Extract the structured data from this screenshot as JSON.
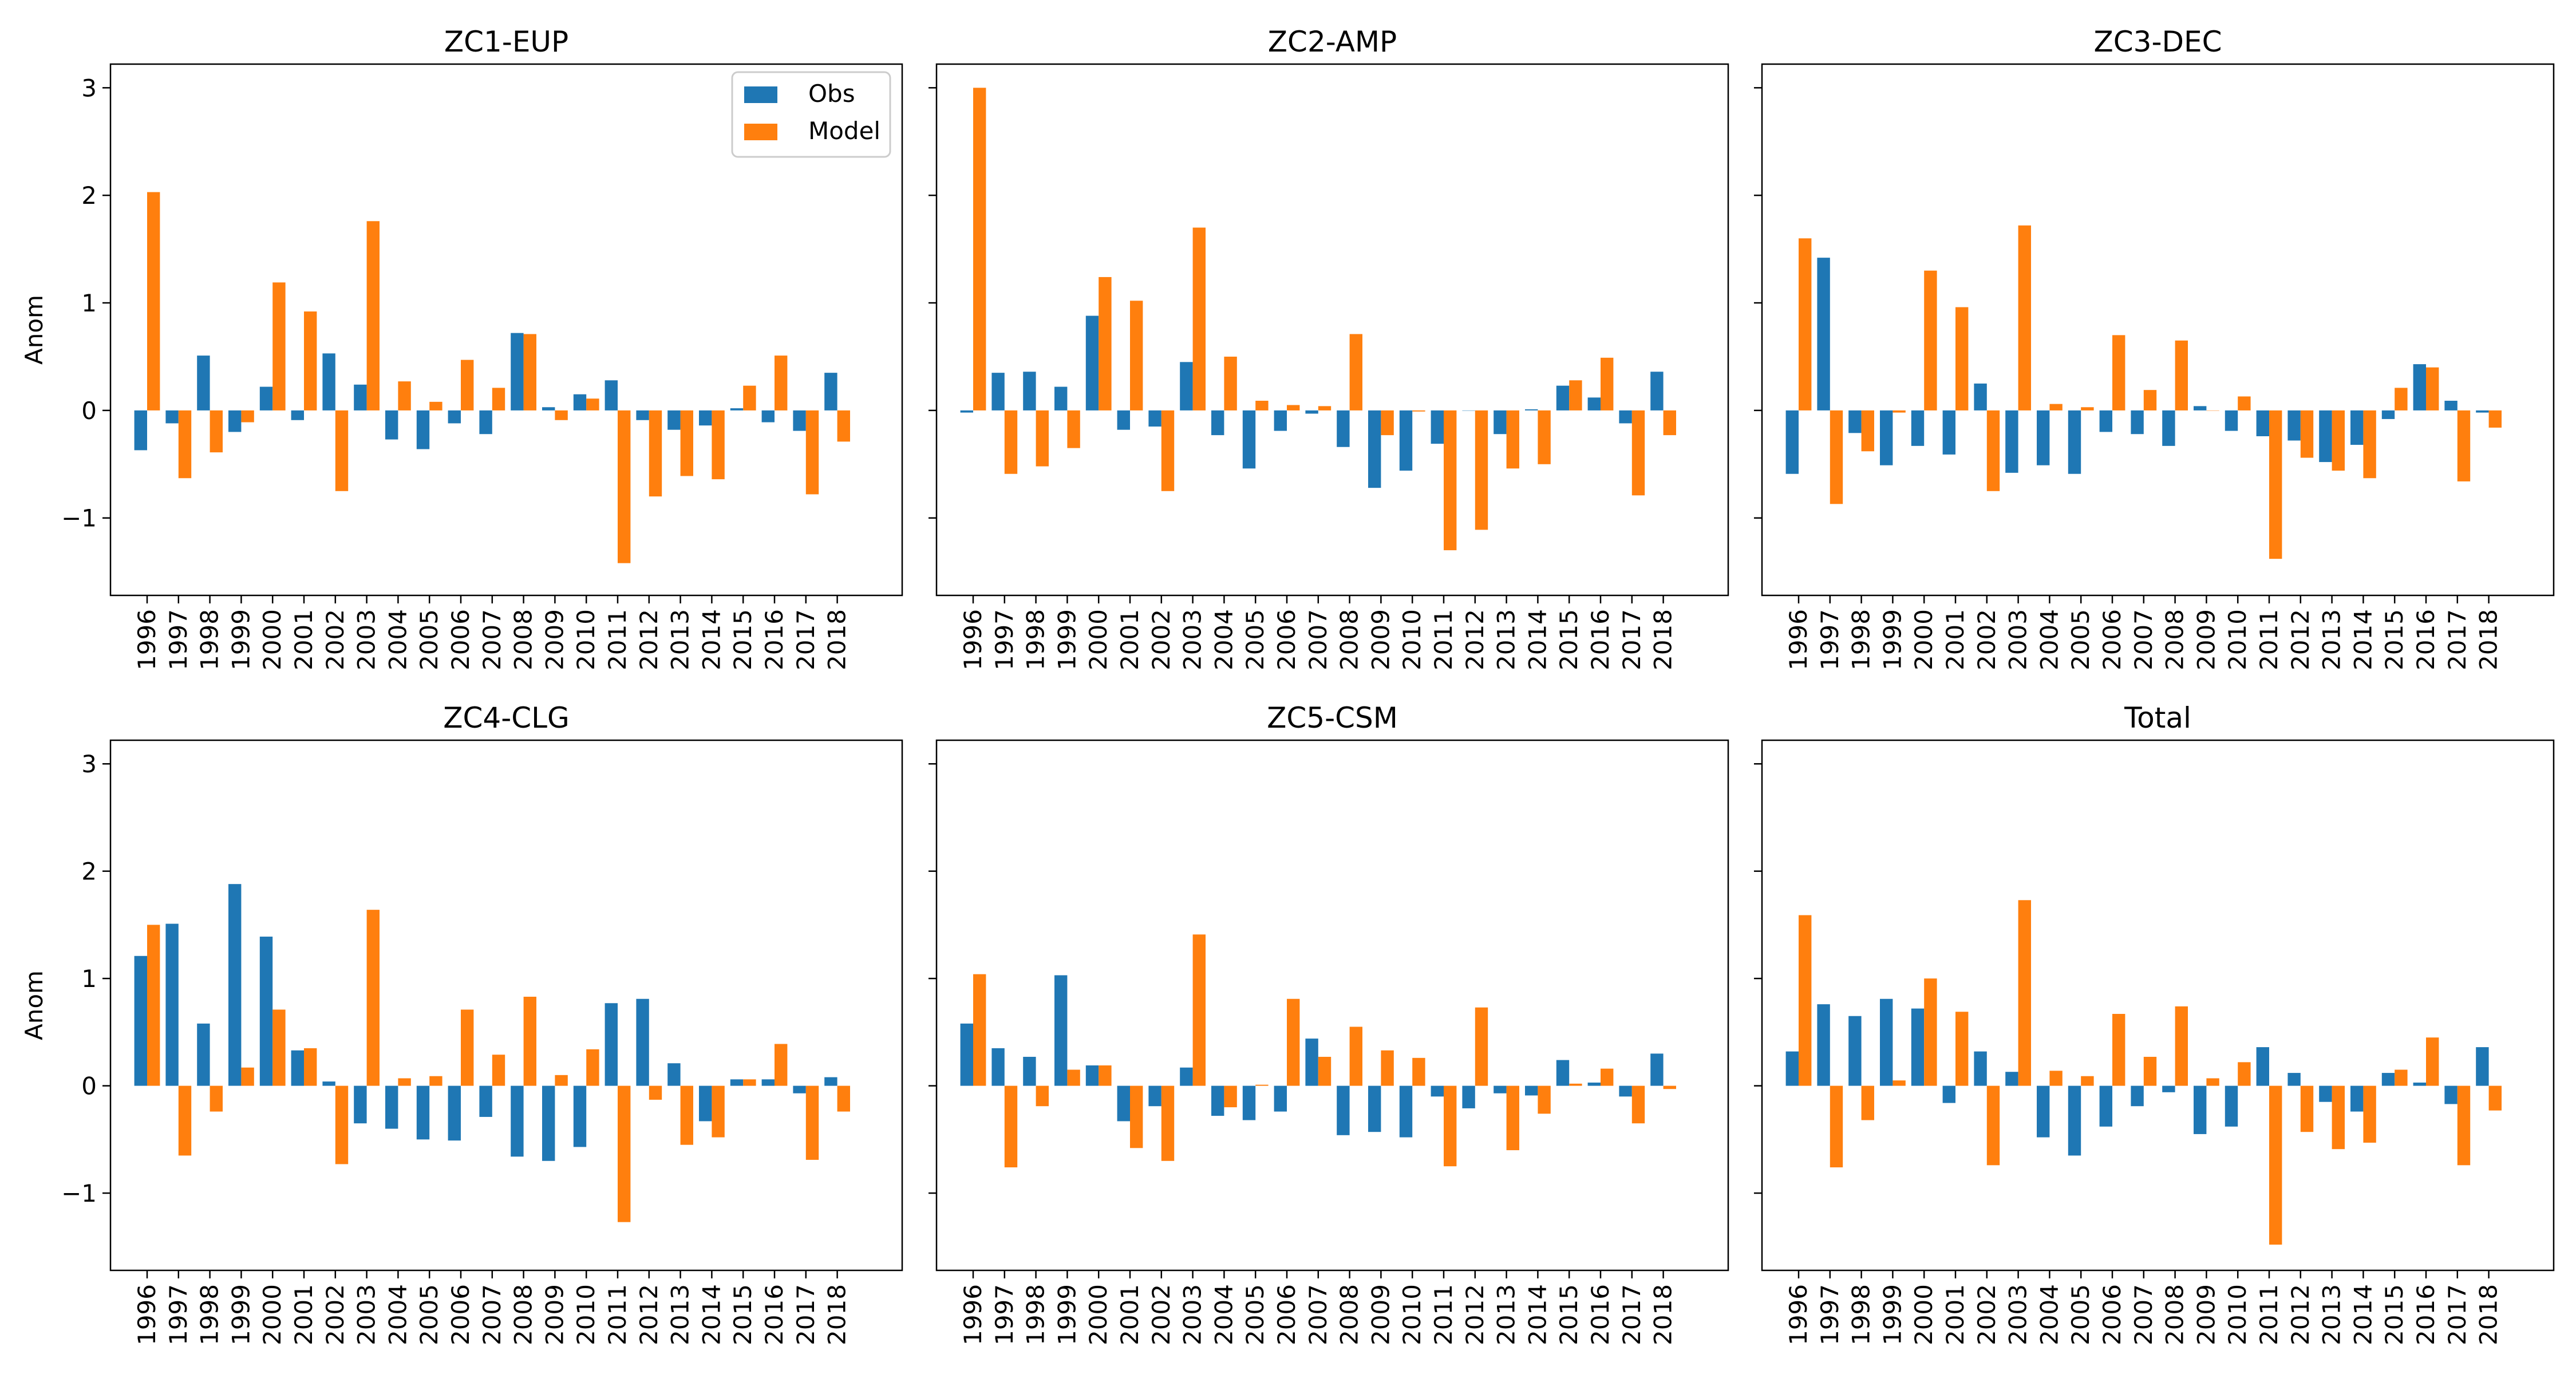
{
  "figure": {
    "ylabel": "Anom"
  },
  "legend": {
    "placement": "upper-right of first panel",
    "entries": [
      {
        "label": "Obs",
        "color": "#1f77b4"
      },
      {
        "label": "Model",
        "color": "#ff7f0e"
      }
    ]
  },
  "chart_data": [
    {
      "type": "bar",
      "title": "ZC1-EUP",
      "ylabel": "Anom",
      "ylim": [
        -1.72,
        3.22
      ],
      "yticks": [
        -1,
        0,
        1,
        2,
        3
      ],
      "categories": [
        "1996",
        "1997",
        "1998",
        "1999",
        "2000",
        "2001",
        "2002",
        "2003",
        "2004",
        "2005",
        "2006",
        "2007",
        "2008",
        "2009",
        "2010",
        "2011",
        "2012",
        "2013",
        "2014",
        "2015",
        "2016",
        "2017",
        "2018"
      ],
      "series": [
        {
          "name": "Obs",
          "color": "#1f77b4",
          "values": [
            -0.37,
            -0.12,
            0.51,
            -0.2,
            0.22,
            -0.09,
            0.53,
            0.24,
            -0.27,
            -0.36,
            -0.12,
            -0.22,
            0.72,
            0.03,
            0.15,
            0.28,
            -0.09,
            -0.18,
            -0.14,
            0.02,
            -0.11,
            -0.19,
            0.35
          ]
        },
        {
          "name": "Model",
          "color": "#ff7f0e",
          "values": [
            2.03,
            -0.63,
            -0.39,
            -0.11,
            1.19,
            0.92,
            -0.75,
            1.76,
            0.27,
            0.08,
            0.47,
            0.21,
            0.71,
            -0.09,
            0.11,
            -1.42,
            -0.8,
            -0.61,
            -0.64,
            0.23,
            0.51,
            -0.78,
            -0.29
          ]
        }
      ]
    },
    {
      "type": "bar",
      "title": "ZC2-AMP",
      "ylim": [
        -1.72,
        3.22
      ],
      "yticks": [
        -1,
        0,
        1,
        2,
        3
      ],
      "categories": [
        "1996",
        "1997",
        "1998",
        "1999",
        "2000",
        "2001",
        "2002",
        "2003",
        "2004",
        "2005",
        "2006",
        "2007",
        "2008",
        "2009",
        "2010",
        "2011",
        "2012",
        "2013",
        "2014",
        "2015",
        "2016",
        "2017",
        "2018"
      ],
      "series": [
        {
          "name": "Obs",
          "color": "#1f77b4",
          "values": [
            -0.02,
            0.35,
            0.36,
            0.22,
            0.88,
            -0.18,
            -0.15,
            0.45,
            -0.23,
            -0.54,
            -0.19,
            -0.03,
            -0.34,
            -0.72,
            -0.56,
            -0.31,
            0.0,
            -0.22,
            0.01,
            0.23,
            0.12,
            -0.12,
            0.36
          ]
        },
        {
          "name": "Model",
          "color": "#ff7f0e",
          "values": [
            3.0,
            -0.59,
            -0.52,
            -0.35,
            1.24,
            1.02,
            -0.75,
            1.7,
            0.5,
            0.09,
            0.05,
            0.04,
            0.71,
            -0.23,
            -0.01,
            -1.3,
            -1.11,
            -0.54,
            -0.5,
            0.28,
            0.49,
            -0.79,
            -0.23
          ]
        }
      ]
    },
    {
      "type": "bar",
      "title": "ZC3-DEC",
      "ylim": [
        -1.72,
        3.22
      ],
      "yticks": [
        -1,
        0,
        1,
        2,
        3
      ],
      "categories": [
        "1996",
        "1997",
        "1998",
        "1999",
        "2000",
        "2001",
        "2002",
        "2003",
        "2004",
        "2005",
        "2006",
        "2007",
        "2008",
        "2009",
        "2010",
        "2011",
        "2012",
        "2013",
        "2014",
        "2015",
        "2016",
        "2017",
        "2018"
      ],
      "series": [
        {
          "name": "Obs",
          "color": "#1f77b4",
          "values": [
            -0.59,
            1.42,
            -0.21,
            -0.51,
            -0.33,
            -0.41,
            0.25,
            -0.58,
            -0.51,
            -0.59,
            -0.2,
            -0.22,
            -0.33,
            0.04,
            -0.19,
            -0.24,
            -0.28,
            -0.48,
            -0.32,
            -0.08,
            0.43,
            0.09,
            -0.02
          ]
        },
        {
          "name": "Model",
          "color": "#ff7f0e",
          "values": [
            1.6,
            -0.87,
            -0.38,
            -0.02,
            1.3,
            0.96,
            -0.75,
            1.72,
            0.06,
            0.03,
            0.7,
            0.19,
            0.65,
            0.0,
            0.13,
            -1.38,
            -0.44,
            -0.56,
            -0.63,
            0.21,
            0.4,
            -0.66,
            -0.16
          ]
        }
      ]
    },
    {
      "type": "bar",
      "title": "ZC4-CLG",
      "ylabel": "Anom",
      "ylim": [
        -1.72,
        3.22
      ],
      "yticks": [
        -1,
        0,
        1,
        2,
        3
      ],
      "categories": [
        "1996",
        "1997",
        "1998",
        "1999",
        "2000",
        "2001",
        "2002",
        "2003",
        "2004",
        "2005",
        "2006",
        "2007",
        "2008",
        "2009",
        "2010",
        "2011",
        "2012",
        "2013",
        "2014",
        "2015",
        "2016",
        "2017",
        "2018"
      ],
      "series": [
        {
          "name": "Obs",
          "color": "#1f77b4",
          "values": [
            1.21,
            1.51,
            0.58,
            1.88,
            1.39,
            0.33,
            0.04,
            -0.35,
            -0.4,
            -0.5,
            -0.51,
            -0.29,
            -0.66,
            -0.7,
            -0.57,
            0.77,
            0.81,
            0.21,
            -0.33,
            0.06,
            0.06,
            -0.07,
            0.08
          ]
        },
        {
          "name": "Model",
          "color": "#ff7f0e",
          "values": [
            1.5,
            -0.65,
            -0.24,
            0.17,
            0.71,
            0.35,
            -0.73,
            1.64,
            0.07,
            0.09,
            0.71,
            0.29,
            0.83,
            0.1,
            0.34,
            -1.27,
            -0.13,
            -0.55,
            -0.48,
            0.06,
            0.39,
            -0.69,
            -0.24
          ]
        }
      ]
    },
    {
      "type": "bar",
      "title": "ZC5-CSM",
      "ylim": [
        -1.72,
        3.22
      ],
      "yticks": [
        -1,
        0,
        1,
        2,
        3
      ],
      "categories": [
        "1996",
        "1997",
        "1998",
        "1999",
        "2000",
        "2001",
        "2002",
        "2003",
        "2004",
        "2005",
        "2006",
        "2007",
        "2008",
        "2009",
        "2010",
        "2011",
        "2012",
        "2013",
        "2014",
        "2015",
        "2016",
        "2017",
        "2018"
      ],
      "series": [
        {
          "name": "Obs",
          "color": "#1f77b4",
          "values": [
            0.58,
            0.35,
            0.27,
            1.03,
            0.19,
            -0.33,
            -0.19,
            0.17,
            -0.28,
            -0.32,
            -0.24,
            0.44,
            -0.46,
            -0.43,
            -0.48,
            -0.1,
            -0.21,
            -0.07,
            -0.09,
            0.24,
            0.03,
            -0.1,
            0.3
          ]
        },
        {
          "name": "Model",
          "color": "#ff7f0e",
          "values": [
            1.04,
            -0.76,
            -0.19,
            0.15,
            0.19,
            -0.58,
            -0.7,
            1.41,
            -0.2,
            0.01,
            0.81,
            0.27,
            0.55,
            0.33,
            0.26,
            -0.75,
            0.73,
            -0.6,
            -0.26,
            0.02,
            0.16,
            -0.35,
            -0.03
          ]
        }
      ]
    },
    {
      "type": "bar",
      "title": "Total",
      "ylim": [
        -1.72,
        3.22
      ],
      "yticks": [
        -1,
        0,
        1,
        2,
        3
      ],
      "categories": [
        "1996",
        "1997",
        "1998",
        "1999",
        "2000",
        "2001",
        "2002",
        "2003",
        "2004",
        "2005",
        "2006",
        "2007",
        "2008",
        "2009",
        "2010",
        "2011",
        "2012",
        "2013",
        "2014",
        "2015",
        "2016",
        "2017",
        "2018"
      ],
      "series": [
        {
          "name": "Obs",
          "color": "#1f77b4",
          "values": [
            0.32,
            0.76,
            0.65,
            0.81,
            0.72,
            -0.16,
            0.32,
            0.13,
            -0.48,
            -0.65,
            -0.38,
            -0.19,
            -0.06,
            -0.45,
            -0.38,
            0.36,
            0.12,
            -0.15,
            -0.24,
            0.12,
            0.03,
            -0.17,
            0.36
          ]
        },
        {
          "name": "Model",
          "color": "#ff7f0e",
          "values": [
            1.59,
            -0.76,
            -0.32,
            0.05,
            1.0,
            0.69,
            -0.74,
            1.73,
            0.14,
            0.09,
            0.67,
            0.27,
            0.74,
            0.07,
            0.22,
            -1.48,
            -0.43,
            -0.59,
            -0.53,
            0.15,
            0.45,
            -0.74,
            -0.23
          ]
        }
      ]
    }
  ]
}
